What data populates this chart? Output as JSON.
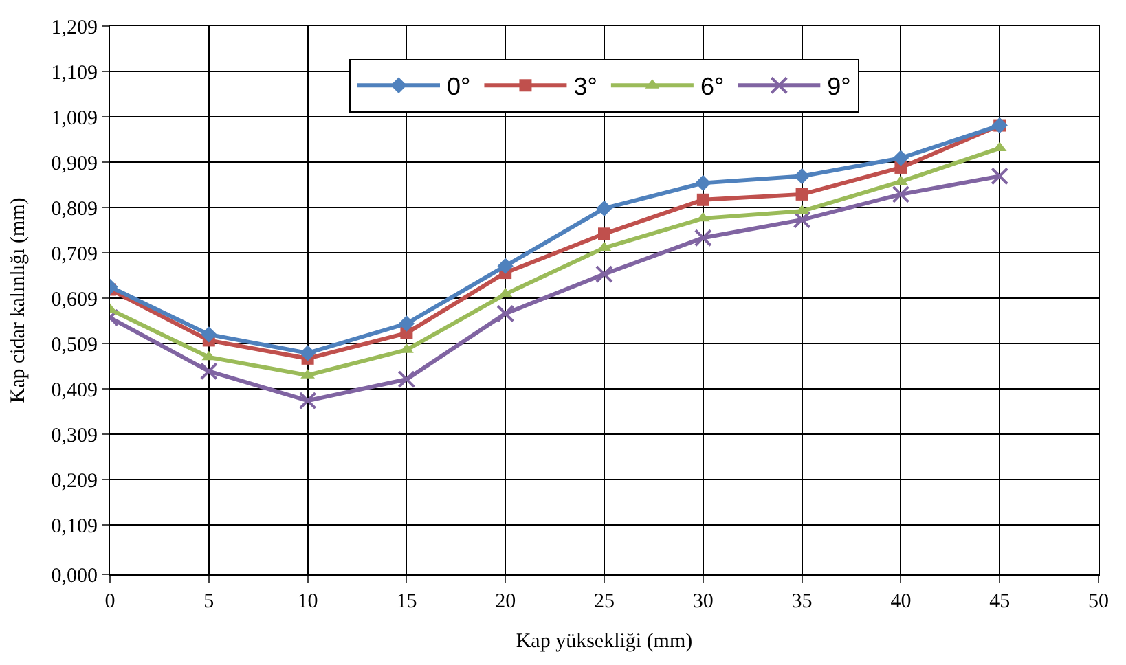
{
  "chart_data": {
    "type": "line",
    "xlabel": "Kap yüksekliği (mm)",
    "ylabel": "Kap cidar kalınlığı (mm)",
    "x": [
      0,
      5,
      10,
      15,
      20,
      25,
      30,
      35,
      40,
      45
    ],
    "series": [
      {
        "name": "0°",
        "color": "#4f81bd",
        "marker": "diamond",
        "values": [
          0.634,
          0.529,
          0.488,
          0.553,
          0.68,
          0.807,
          0.863,
          0.878,
          0.918,
          0.99
        ]
      },
      {
        "name": "3°",
        "color": "#c0504d",
        "marker": "square",
        "values": [
          0.628,
          0.516,
          0.476,
          0.532,
          0.665,
          0.751,
          0.826,
          0.838,
          0.897,
          0.99
        ]
      },
      {
        "name": "6°",
        "color": "#9bbb59",
        "marker": "triangle",
        "values": [
          0.584,
          0.479,
          0.439,
          0.495,
          0.618,
          0.72,
          0.785,
          0.801,
          0.866,
          0.94
        ]
      },
      {
        "name": "9°",
        "color": "#8064a2",
        "marker": "cross",
        "values": [
          0.566,
          0.448,
          0.383,
          0.43,
          0.575,
          0.662,
          0.742,
          0.782,
          0.838,
          0.878
        ]
      }
    ],
    "xlim": [
      0,
      50
    ],
    "xticks": [
      0,
      5,
      10,
      15,
      20,
      25,
      30,
      35,
      40,
      45,
      50
    ],
    "ylim": [
      0,
      1.209
    ],
    "yticks": [
      {
        "value": 0,
        "label": "0,000"
      },
      {
        "value": 0.109,
        "label": "0,109"
      },
      {
        "value": 0.209,
        "label": "0,209"
      },
      {
        "value": 0.309,
        "label": "0,309"
      },
      {
        "value": 0.409,
        "label": "0,409"
      },
      {
        "value": 0.509,
        "label": "0,509"
      },
      {
        "value": 0.609,
        "label": "0,609"
      },
      {
        "value": 0.709,
        "label": "0,709"
      },
      {
        "value": 0.809,
        "label": "0,809"
      },
      {
        "value": 0.909,
        "label": "0,909"
      },
      {
        "value": 1.009,
        "label": "1,009"
      },
      {
        "value": 1.109,
        "label": "1,109"
      },
      {
        "value": 1.209,
        "label": "1,209"
      }
    ],
    "grid": true,
    "legend": "top",
    "line_style": "solid"
  }
}
